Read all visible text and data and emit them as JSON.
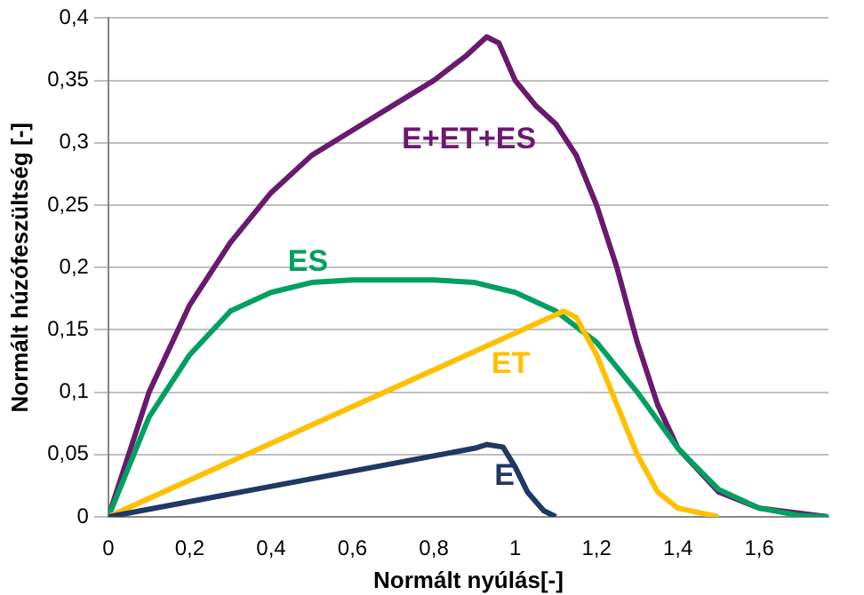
{
  "chart_data": {
    "type": "line",
    "xlabel": "Normált nyúlás[-]",
    "ylabel": "Normált húzófeszültség [-]",
    "xlim": [
      0,
      1.77
    ],
    "xticks": [
      0,
      {
        "value": 0.2,
        "label": "0,2"
      },
      {
        "value": 0.4,
        "label": "0,4"
      },
      {
        "value": 0.6,
        "label": "0,6"
      },
      {
        "value": 0.8,
        "label": "0,8"
      },
      1,
      {
        "value": 1.2,
        "label": "1,2"
      },
      {
        "value": 1.4,
        "label": "1,4"
      },
      {
        "value": 1.6,
        "label": "1,6"
      }
    ],
    "ylim": [
      0,
      0.4
    ],
    "yticks": [
      0,
      {
        "value": 0.05,
        "label": "0,05"
      },
      {
        "value": 0.1,
        "label": "0,1"
      },
      {
        "value": 0.15,
        "label": "0,15"
      },
      {
        "value": 0.2,
        "label": "0,2"
      },
      {
        "value": 0.25,
        "label": "0,25"
      },
      {
        "value": 0.3,
        "label": "0,3"
      },
      {
        "value": 0.35,
        "label": "0,35"
      },
      {
        "value": 0.4,
        "label": "0,4"
      }
    ],
    "grid": "y",
    "legend": false,
    "marker": "none",
    "line_style": "solid",
    "series": [
      {
        "name": "E",
        "color": "#203864",
        "x": [
          0,
          0.9,
          0.93,
          0.97,
          1.0,
          1.03,
          1.07,
          1.1
        ],
        "values": [
          0,
          0.055,
          0.058,
          0.056,
          0.04,
          0.02,
          0.005,
          0
        ]
      },
      {
        "name": "ET",
        "color": "#ffc000",
        "x": [
          0,
          1.12,
          1.15,
          1.2,
          1.25,
          1.3,
          1.35,
          1.4,
          1.5
        ],
        "values": [
          0,
          0.165,
          0.16,
          0.13,
          0.09,
          0.05,
          0.02,
          0.007,
          0
        ]
      },
      {
        "name": "ES",
        "color": "#00a060",
        "x": [
          0,
          0.1,
          0.2,
          0.3,
          0.4,
          0.5,
          0.6,
          0.8,
          0.9,
          1.0,
          1.1,
          1.2,
          1.3,
          1.4,
          1.5,
          1.6,
          1.7,
          1.77
        ],
        "values": [
          0,
          0.08,
          0.13,
          0.165,
          0.18,
          0.188,
          0.19,
          0.19,
          0.188,
          0.18,
          0.165,
          0.14,
          0.1,
          0.055,
          0.022,
          0.007,
          0.001,
          0
        ]
      },
      {
        "name": "E+ET+ES",
        "color": "#6a1a6e",
        "x": [
          0,
          0.1,
          0.2,
          0.3,
          0.4,
          0.5,
          0.6,
          0.7,
          0.8,
          0.88,
          0.93,
          0.96,
          1.0,
          1.05,
          1.1,
          1.15,
          1.2,
          1.25,
          1.3,
          1.35,
          1.4,
          1.5,
          1.6,
          1.77
        ],
        "values": [
          0,
          0.1,
          0.17,
          0.22,
          0.26,
          0.29,
          0.31,
          0.33,
          0.35,
          0.37,
          0.385,
          0.38,
          0.35,
          0.33,
          0.315,
          0.29,
          0.25,
          0.2,
          0.14,
          0.09,
          0.055,
          0.02,
          0.007,
          0
        ]
      }
    ]
  }
}
